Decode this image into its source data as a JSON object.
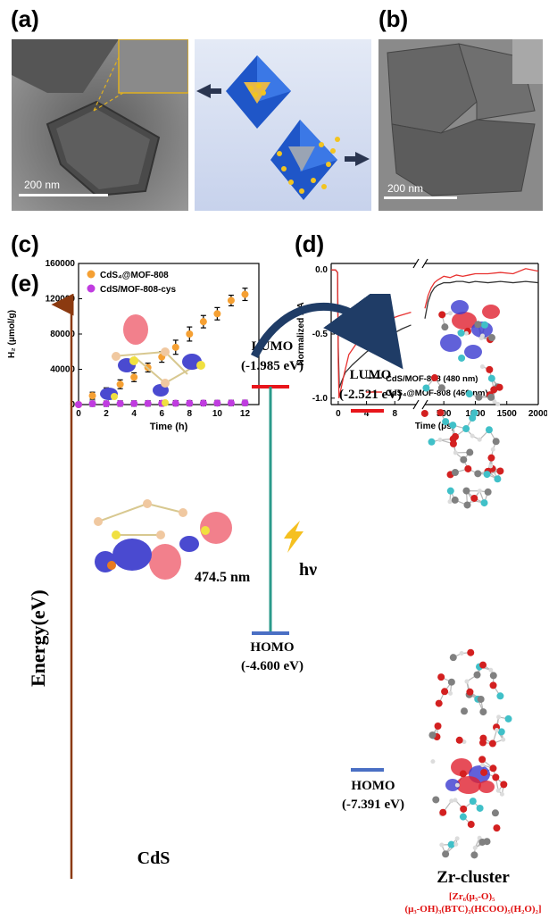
{
  "panels": {
    "a": {
      "label": "(a)",
      "scalebar": "200 nm"
    },
    "b": {
      "label": "(b)",
      "scalebar": "200 nm"
    },
    "c": {
      "label": "(c)"
    },
    "d": {
      "label": "(d)"
    },
    "e": {
      "label": "(e)"
    }
  },
  "chart_data": [
    {
      "type": "scatter",
      "panel": "c",
      "xlabel": "Time (h)",
      "ylabel": "H₂ (μmol/g)",
      "xlim": [
        0,
        13
      ],
      "ylim": [
        0,
        160000
      ],
      "xticks": [
        0,
        2,
        4,
        6,
        8,
        10,
        12
      ],
      "yticks": [
        0,
        40000,
        80000,
        120000,
        160000
      ],
      "legend_position": "top-left",
      "series": [
        {
          "name": "CdS₄@MOF-808",
          "color": "#f5a033",
          "x": [
            0,
            1,
            2,
            3,
            4,
            5,
            6,
            7,
            8,
            9,
            10,
            11,
            12
          ],
          "y": [
            0,
            10000,
            15000,
            23000,
            31000,
            42000,
            54000,
            65000,
            80000,
            94000,
            103000,
            118000,
            125000
          ],
          "err": [
            0,
            4000,
            4000,
            5000,
            5000,
            5000,
            6000,
            8000,
            8000,
            7000,
            7000,
            6000,
            7000
          ]
        },
        {
          "name": "CdS/MOF-808-cys",
          "color": "#c03ce0",
          "x": [
            0,
            1,
            2,
            3,
            4,
            5,
            6,
            7,
            8,
            9,
            10,
            11,
            12
          ],
          "y": [
            0,
            1000,
            1000,
            1200,
            1200,
            1300,
            1400,
            1500,
            1500,
            1600,
            1700,
            1800,
            1900
          ],
          "err": [
            0,
            3000,
            3000,
            3000,
            3000,
            3000,
            3000,
            3000,
            3000,
            3000,
            3000,
            3000,
            3000
          ]
        }
      ]
    },
    {
      "type": "line",
      "panel": "d",
      "xlabel": "Time (ps)",
      "ylabel": "Normalized ΔA",
      "ylim": [
        -1.05,
        0.05
      ],
      "yticks": [
        0.0,
        -0.5,
        -1.0
      ],
      "xticks_left": [
        0,
        4,
        8
      ],
      "xlim_left": [
        -1,
        11
      ],
      "xticks_right": [
        500,
        1000,
        1500,
        2000
      ],
      "xlim_right": [
        200,
        2000
      ],
      "axis_break": true,
      "legend_position": "bottom-right",
      "series": [
        {
          "name": "CdS/MOF-808 (480 nm)",
          "color": "#333333",
          "left": {
            "x": [
              -1,
              -0.4,
              -0.1,
              0.0,
              0.15,
              0.4,
              1,
              2,
              3,
              4,
              5,
              6,
              7,
              8,
              9,
              10.3
            ],
            "y": [
              0.0,
              0.0,
              -0.02,
              -0.6,
              -0.92,
              -0.88,
              -0.8,
              -0.74,
              -0.69,
              -0.64,
              -0.6,
              -0.56,
              -0.52,
              -0.49,
              -0.46,
              -0.43
            ]
          },
          "right": {
            "x": [
              200,
              250,
              300,
              350,
              400,
              500,
              600,
              700,
              800,
              900,
              1000,
              1200,
              1400,
              1600,
              1800,
              2000
            ],
            "y": [
              -0.38,
              -0.25,
              -0.18,
              -0.14,
              -0.12,
              -0.1,
              -0.1,
              -0.09,
              -0.09,
              -0.1,
              -0.09,
              -0.1,
              -0.09,
              -0.1,
              -0.09,
              -0.1
            ]
          }
        },
        {
          "name": "CdS₄@MOF-808 (460 nm)",
          "color": "#e8312f",
          "left": {
            "x": [
              -1,
              -0.4,
              -0.1,
              0.0,
              0.1,
              0.3,
              0.8,
              1.5,
              2.5,
              3.5,
              4.5,
              5.5,
              6.5,
              7.5,
              8.5,
              10.3
            ],
            "y": [
              0.0,
              0.0,
              -0.02,
              -0.7,
              -1.0,
              -0.95,
              -0.82,
              -0.66,
              -0.58,
              -0.52,
              -0.47,
              -0.43,
              -0.41,
              -0.38,
              -0.36,
              -0.33
            ]
          },
          "right": {
            "x": [
              200,
              250,
              300,
              350,
              400,
              500,
              600,
              700,
              800,
              900,
              1000,
              1200,
              1400,
              1600,
              1800,
              2000
            ],
            "y": [
              -0.3,
              -0.2,
              -0.14,
              -0.1,
              -0.08,
              -0.05,
              -0.06,
              -0.04,
              -0.05,
              -0.04,
              -0.03,
              -0.03,
              -0.02,
              -0.03,
              0.01,
              -0.01
            ]
          }
        }
      ]
    }
  ],
  "energy_diagram": {
    "axis_label": "Energy(eV)",
    "cds_label": "CdS",
    "zr_label": "Zr-cluster",
    "zr_formula": "[Zr₆(μ₃-O)₅(μ₃-OH)₃(BTC)₂(HCOO)₅(H₂O)₂]",
    "cds_lumo": {
      "label": "LUMO",
      "value": "(-1.985 eV)"
    },
    "cds_homo": {
      "label": "HOMO",
      "value": "(-4.600 eV)"
    },
    "zr_lumo": {
      "label": "LUMO",
      "value": "(-2.521 eV)"
    },
    "zr_homo": {
      "label": "HOMO",
      "value": "(-7.391 eV)"
    },
    "gap_label": "474.5 nm",
    "hv_label": "hν",
    "colors": {
      "lumo": "#e8151b",
      "homo": "#4a6fc4",
      "gap": "#2a9a8a",
      "arrow": "#1f3c66",
      "axis": "#8b3a10",
      "formula": "#e01010"
    }
  }
}
